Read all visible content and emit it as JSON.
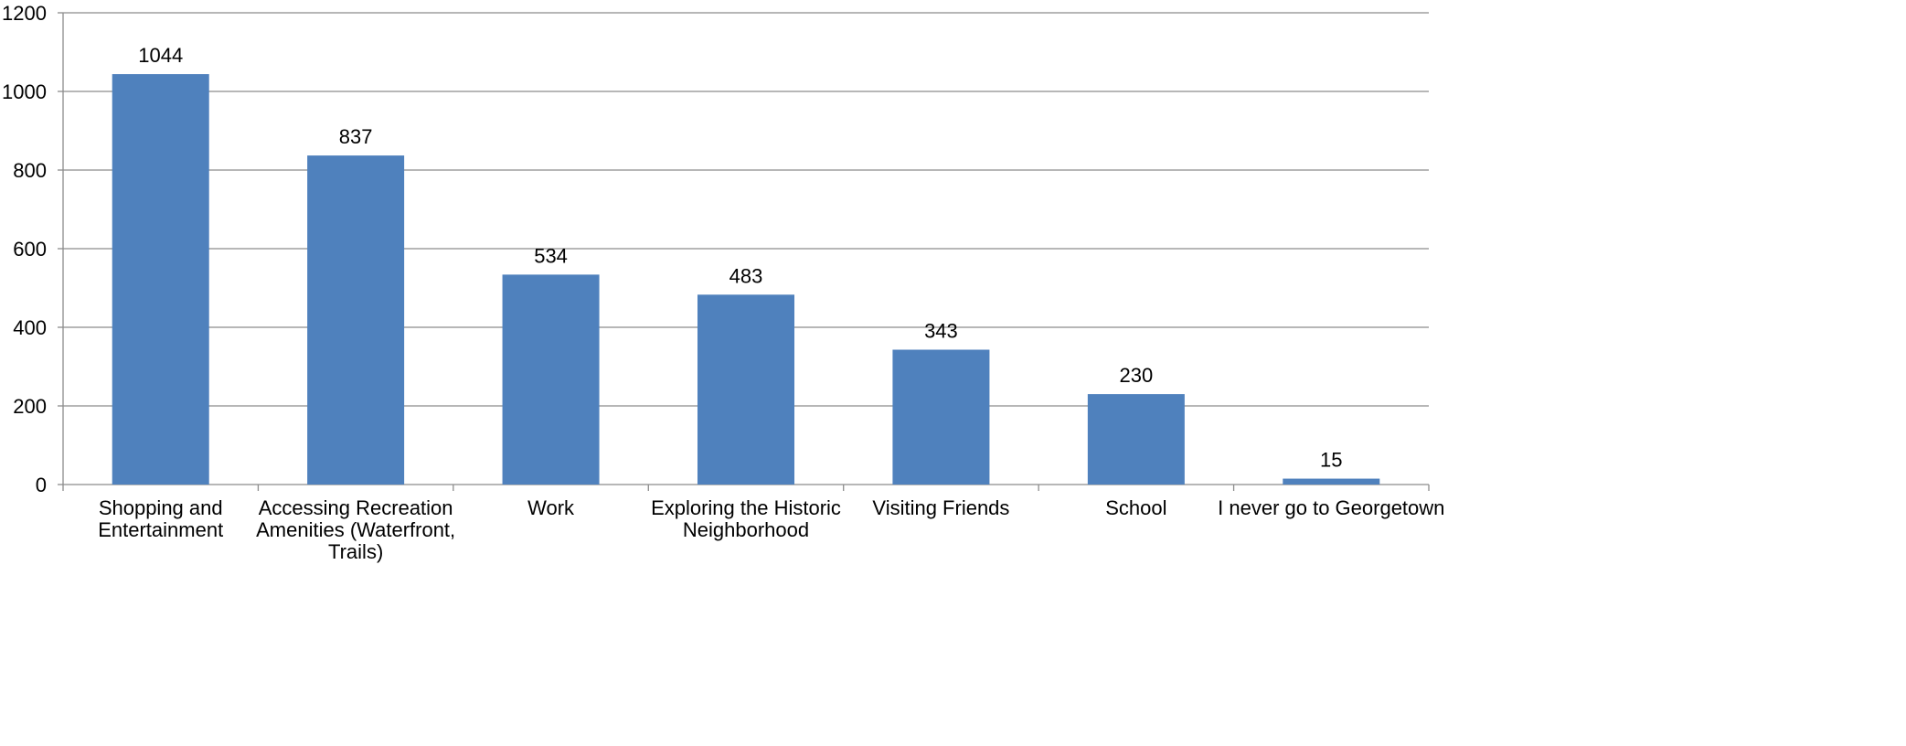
{
  "chart_data": {
    "type": "bar",
    "categories": [
      [
        "Shopping and",
        "Entertainment"
      ],
      [
        "Accessing Recreation",
        "Amenities (Waterfront,",
        "Trails)"
      ],
      [
        "Work"
      ],
      [
        "Exploring the Historic",
        "Neighborhood"
      ],
      [
        "Visiting Friends"
      ],
      [
        "School"
      ],
      [
        "I never go to Georgetown"
      ]
    ],
    "values": [
      1044,
      837,
      534,
      483,
      343,
      230,
      15
    ],
    "ylim": [
      0,
      1200
    ],
    "yticks": [
      0,
      200,
      400,
      600,
      800,
      1000,
      1200
    ],
    "grid": true,
    "data_labels": true,
    "title": "",
    "xlabel": "",
    "ylabel": "",
    "colors": {
      "bar": "#4F81BD",
      "grid": "#8C8C8C",
      "axis": "#8C8C8C"
    }
  }
}
